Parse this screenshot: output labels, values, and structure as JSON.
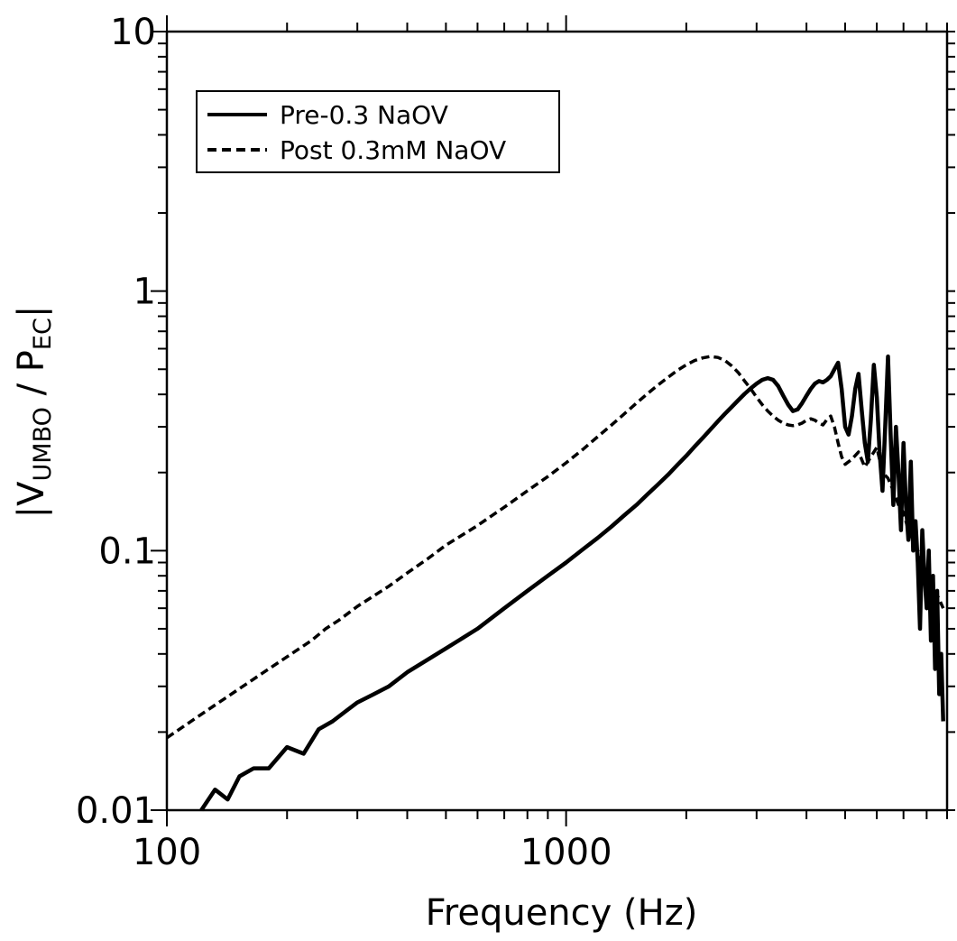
{
  "chart_data": {
    "type": "line",
    "title": "",
    "xlabel": "Frequency (Hz)",
    "ylabel": {
      "prefix": "|V",
      "sub1": "UMBO",
      "middle": " / P",
      "sub2": "EC",
      "suffix": "|"
    },
    "x_scale": "log",
    "y_scale": "log",
    "xlim": [
      100,
      9000
    ],
    "ylim": [
      0.01,
      10
    ],
    "x_ticks": [
      {
        "value": 100,
        "label": "100"
      },
      {
        "value": 1000,
        "label": "1000"
      }
    ],
    "y_ticks": [
      {
        "value": 10,
        "label": "10"
      },
      {
        "value": 1,
        "label": "1"
      },
      {
        "value": 0.1,
        "label": "0.1"
      },
      {
        "value": 0.01,
        "label": "0.01"
      }
    ],
    "grid": false,
    "legend_position": "top-left",
    "series": [
      {
        "name": "Pre-0.3 NaOV",
        "style": "solid",
        "color": "#000000",
        "x": [
          122,
          132,
          142,
          152,
          165,
          180,
          200,
          220,
          240,
          260,
          280,
          300,
          330,
          360,
          400,
          450,
          500,
          550,
          600,
          700,
          800,
          900,
          1000,
          1100,
          1200,
          1300,
          1400,
          1500,
          1600,
          1700,
          1800,
          1900,
          2000,
          2100,
          2200,
          2300,
          2400,
          2500,
          2600,
          2700,
          2800,
          2900,
          3000,
          3100,
          3200,
          3300,
          3400,
          3500,
          3600,
          3700,
          3800,
          3900,
          4000,
          4100,
          4200,
          4300,
          4400,
          4500,
          4600,
          4700,
          4800,
          4900,
          5000,
          5100,
          5200,
          5300,
          5400,
          5500,
          5600,
          5700,
          5800,
          5900,
          6000,
          6100,
          6200,
          6300,
          6400,
          6500,
          6600,
          6700,
          6800,
          6900,
          7000,
          7100,
          7200,
          7300,
          7400,
          7500,
          7600,
          7700,
          7800,
          7900,
          8000,
          8100,
          8200,
          8300,
          8400,
          8500,
          8600,
          8700,
          8800
        ],
        "y": [
          0.01,
          0.012,
          0.011,
          0.0135,
          0.0145,
          0.0145,
          0.0175,
          0.0165,
          0.0205,
          0.022,
          0.024,
          0.026,
          0.028,
          0.03,
          0.034,
          0.038,
          0.042,
          0.046,
          0.05,
          0.06,
          0.07,
          0.08,
          0.09,
          0.101,
          0.112,
          0.124,
          0.137,
          0.15,
          0.165,
          0.18,
          0.196,
          0.214,
          0.232,
          0.252,
          0.272,
          0.293,
          0.315,
          0.337,
          0.358,
          0.38,
          0.402,
          0.422,
          0.44,
          0.455,
          0.462,
          0.455,
          0.43,
          0.395,
          0.365,
          0.345,
          0.35,
          0.37,
          0.395,
          0.42,
          0.44,
          0.45,
          0.445,
          0.455,
          0.47,
          0.5,
          0.53,
          0.42,
          0.3,
          0.28,
          0.33,
          0.42,
          0.48,
          0.35,
          0.26,
          0.22,
          0.32,
          0.52,
          0.39,
          0.24,
          0.17,
          0.3,
          0.56,
          0.28,
          0.15,
          0.3,
          0.2,
          0.12,
          0.26,
          0.15,
          0.11,
          0.22,
          0.1,
          0.13,
          0.09,
          0.05,
          0.12,
          0.08,
          0.06,
          0.1,
          0.045,
          0.08,
          0.035,
          0.07,
          0.028,
          0.04,
          0.022
        ]
      },
      {
        "name": "Post 0.3mM NaOV",
        "style": "dashed",
        "color": "#000000",
        "x": [
          100,
          110,
          120,
          130,
          140,
          150,
          170,
          190,
          210,
          230,
          250,
          270,
          300,
          330,
          360,
          400,
          450,
          500,
          550,
          600,
          650,
          700,
          800,
          900,
          1000,
          1100,
          1200,
          1300,
          1400,
          1500,
          1600,
          1700,
          1800,
          1900,
          2000,
          2100,
          2200,
          2300,
          2400,
          2500,
          2600,
          2700,
          2800,
          2900,
          3000,
          3100,
          3200,
          3300,
          3400,
          3500,
          3600,
          3700,
          3800,
          3900,
          4000,
          4100,
          4200,
          4300,
          4400,
          4500,
          4600,
          4700,
          4800,
          4900,
          5000,
          5200,
          5400,
          5600,
          5800,
          6000,
          6200,
          6400,
          6600,
          6800,
          7000,
          7200,
          7400,
          7600,
          7800,
          8000,
          8200,
          8400,
          8600,
          8800
        ],
        "y": [
          0.019,
          0.021,
          0.023,
          0.025,
          0.027,
          0.029,
          0.033,
          0.037,
          0.041,
          0.045,
          0.05,
          0.054,
          0.061,
          0.067,
          0.073,
          0.082,
          0.093,
          0.105,
          0.115,
          0.125,
          0.136,
          0.147,
          0.17,
          0.193,
          0.218,
          0.245,
          0.275,
          0.305,
          0.337,
          0.37,
          0.403,
          0.435,
          0.465,
          0.495,
          0.52,
          0.54,
          0.553,
          0.56,
          0.555,
          0.54,
          0.515,
          0.485,
          0.45,
          0.42,
          0.39,
          0.365,
          0.345,
          0.33,
          0.318,
          0.31,
          0.305,
          0.303,
          0.305,
          0.31,
          0.318,
          0.322,
          0.318,
          0.31,
          0.305,
          0.32,
          0.33,
          0.3,
          0.26,
          0.23,
          0.215,
          0.225,
          0.24,
          0.21,
          0.23,
          0.25,
          0.2,
          0.19,
          0.17,
          0.15,
          0.14,
          0.12,
          0.11,
          0.1,
          0.09,
          0.08,
          0.075,
          0.07,
          0.065,
          0.06
        ]
      }
    ]
  }
}
